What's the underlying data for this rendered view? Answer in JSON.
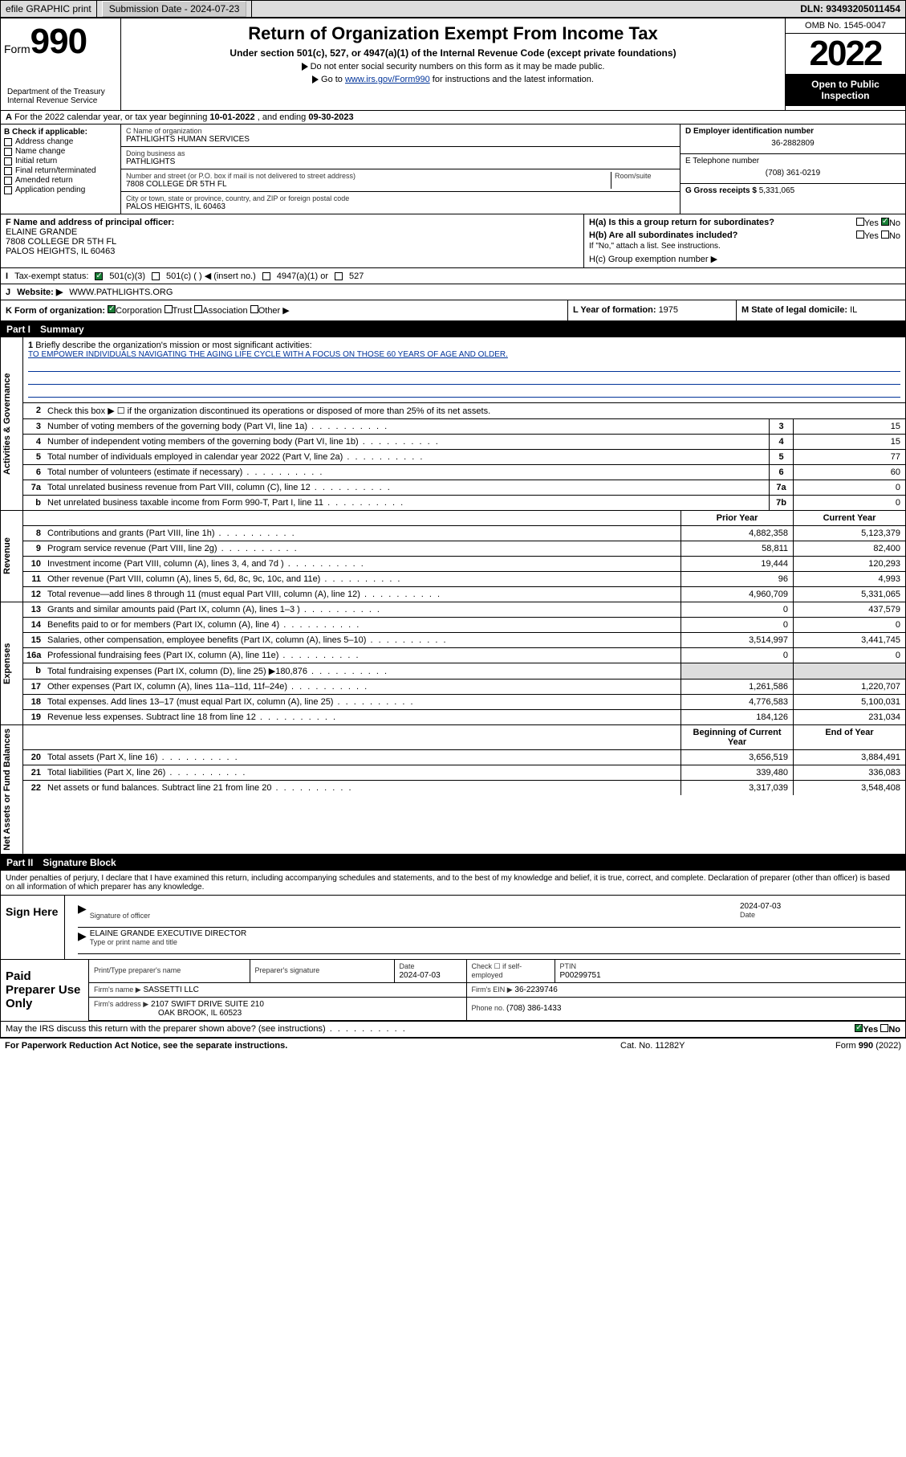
{
  "topbar": {
    "efile": "efile GRAPHIC print",
    "subdate_label": "Submission Date - ",
    "subdate": "2024-07-23",
    "dln_label": "DLN: ",
    "dln": "93493205011454"
  },
  "header": {
    "form_label": "Form",
    "form_num": "990",
    "title": "Return of Organization Exempt From Income Tax",
    "subtitle": "Under section 501(c), 527, or 4947(a)(1) of the Internal Revenue Code (except private foundations)",
    "note1": "Do not enter social security numbers on this form as it may be made public.",
    "note2_pre": "Go to ",
    "note2_link": "www.irs.gov/Form990",
    "note2_post": " for instructions and the latest information.",
    "dept": "Department of the Treasury\nInternal Revenue Service",
    "omb": "OMB No. 1545-0047",
    "year": "2022",
    "inspect": "Open to Public Inspection"
  },
  "periodline": {
    "pre": "For the 2022 calendar year, or tax year beginning ",
    "begin": "10-01-2022",
    "mid": " , and ending ",
    "end": "09-30-2023"
  },
  "B": {
    "title": "B Check if applicable:",
    "opts": [
      "Address change",
      "Name change",
      "Initial return",
      "Final return/terminated",
      "Amended return",
      "Application pending"
    ]
  },
  "C": {
    "name_label": "C Name of organization",
    "name": "PATHLIGHTS HUMAN SERVICES",
    "dba_label": "Doing business as",
    "dba": "PATHLIGHTS",
    "addr_label": "Number and street (or P.O. box if mail is not delivered to street address)",
    "room_label": "Room/suite",
    "addr": "7808 COLLEGE DR 5TH FL",
    "city_label": "City or town, state or province, country, and ZIP or foreign postal code",
    "city": "PALOS HEIGHTS, IL  60463"
  },
  "D": {
    "label": "D Employer identification number",
    "val": "36-2882809",
    "E_label": "E Telephone number",
    "E_val": "(708) 361-0219",
    "G_label": "G Gross receipts $ ",
    "G_val": "5,331,065"
  },
  "F": {
    "label": "F Name and address of principal officer:",
    "name": "ELAINE GRANDE",
    "addr1": "7808 COLLEGE DR 5TH FL",
    "addr2": "PALOS HEIGHTS, IL  60463"
  },
  "H": {
    "a_label": "H(a)  Is this a group return for subordinates?",
    "a_yes": "Yes",
    "a_no": "No",
    "b_label": "H(b)  Are all subordinates included?",
    "b_yes": "Yes",
    "b_no": "No",
    "b_note": "If \"No,\" attach a list. See instructions.",
    "c_label": "H(c)  Group exemption number ▶"
  },
  "I": {
    "label": "Tax-exempt status:",
    "o1": "501(c)(3)",
    "o2": "501(c) (  ) ◀ (insert no.)",
    "o3": "4947(a)(1) or",
    "o4": "527"
  },
  "J": {
    "label": "Website: ▶",
    "val": "WWW.PATHLIGHTS.ORG"
  },
  "K": {
    "label": "K Form of organization:",
    "o1": "Corporation",
    "o2": "Trust",
    "o3": "Association",
    "o4": "Other ▶"
  },
  "L": {
    "label": "L Year of formation: ",
    "val": "1975"
  },
  "M": {
    "label": "M State of legal domicile: ",
    "val": "IL"
  },
  "partI": {
    "num": "Part I",
    "title": "Summary"
  },
  "summary": {
    "q1": "Briefly describe the organization's mission or most significant activities:",
    "mission": "TO EMPOWER INDIVIDUALS NAVIGATING THE AGING LIFE CYCLE WITH A FOCUS ON THOSE 60 YEARS OF AGE AND OLDER.",
    "q2": "Check this box ▶ ☐ if the organization discontinued its operations or disposed of more than 25% of its net assets.",
    "rows_gov": [
      {
        "n": "3",
        "d": "Number of voting members of the governing body (Part VI, line 1a)",
        "box": "3",
        "v": "15"
      },
      {
        "n": "4",
        "d": "Number of independent voting members of the governing body (Part VI, line 1b)",
        "box": "4",
        "v": "15"
      },
      {
        "n": "5",
        "d": "Total number of individuals employed in calendar year 2022 (Part V, line 2a)",
        "box": "5",
        "v": "77"
      },
      {
        "n": "6",
        "d": "Total number of volunteers (estimate if necessary)",
        "box": "6",
        "v": "60"
      },
      {
        "n": "7a",
        "d": "Total unrelated business revenue from Part VIII, column (C), line 12",
        "box": "7a",
        "v": "0"
      },
      {
        "n": "b",
        "d": "Net unrelated business taxable income from Form 990-T, Part I, line 11",
        "box": "7b",
        "v": "0"
      }
    ],
    "hdr_prior": "Prior Year",
    "hdr_curr": "Current Year",
    "rows_rev": [
      {
        "n": "8",
        "d": "Contributions and grants (Part VIII, line 1h)",
        "p": "4,882,358",
        "c": "5,123,379"
      },
      {
        "n": "9",
        "d": "Program service revenue (Part VIII, line 2g)",
        "p": "58,811",
        "c": "82,400"
      },
      {
        "n": "10",
        "d": "Investment income (Part VIII, column (A), lines 3, 4, and 7d )",
        "p": "19,444",
        "c": "120,293"
      },
      {
        "n": "11",
        "d": "Other revenue (Part VIII, column (A), lines 5, 6d, 8c, 9c, 10c, and 11e)",
        "p": "96",
        "c": "4,993"
      },
      {
        "n": "12",
        "d": "Total revenue—add lines 8 through 11 (must equal Part VIII, column (A), line 12)",
        "p": "4,960,709",
        "c": "5,331,065"
      }
    ],
    "rows_exp": [
      {
        "n": "13",
        "d": "Grants and similar amounts paid (Part IX, column (A), lines 1–3 )",
        "p": "0",
        "c": "437,579"
      },
      {
        "n": "14",
        "d": "Benefits paid to or for members (Part IX, column (A), line 4)",
        "p": "0",
        "c": "0"
      },
      {
        "n": "15",
        "d": "Salaries, other compensation, employee benefits (Part IX, column (A), lines 5–10)",
        "p": "3,514,997",
        "c": "3,441,745"
      },
      {
        "n": "16a",
        "d": "Professional fundraising fees (Part IX, column (A), line 11e)",
        "p": "0",
        "c": "0"
      },
      {
        "n": "b",
        "d": "Total fundraising expenses (Part IX, column (D), line 25) ▶180,876",
        "p": "",
        "c": "",
        "shade": true
      },
      {
        "n": "17",
        "d": "Other expenses (Part IX, column (A), lines 11a–11d, 11f–24e)",
        "p": "1,261,586",
        "c": "1,220,707"
      },
      {
        "n": "18",
        "d": "Total expenses. Add lines 13–17 (must equal Part IX, column (A), line 25)",
        "p": "4,776,583",
        "c": "5,100,031"
      },
      {
        "n": "19",
        "d": "Revenue less expenses. Subtract line 18 from line 12",
        "p": "184,126",
        "c": "231,034"
      }
    ],
    "hdr_begin": "Beginning of Current Year",
    "hdr_end": "End of Year",
    "rows_net": [
      {
        "n": "20",
        "d": "Total assets (Part X, line 16)",
        "p": "3,656,519",
        "c": "3,884,491"
      },
      {
        "n": "21",
        "d": "Total liabilities (Part X, line 26)",
        "p": "339,480",
        "c": "336,083"
      },
      {
        "n": "22",
        "d": "Net assets or fund balances. Subtract line 21 from line 20",
        "p": "3,317,039",
        "c": "3,548,408"
      }
    ],
    "vlab_gov": "Activities & Governance",
    "vlab_rev": "Revenue",
    "vlab_exp": "Expenses",
    "vlab_net": "Net Assets or Fund Balances"
  },
  "partII": {
    "num": "Part II",
    "title": "Signature Block"
  },
  "sig": {
    "decl": "Under penalties of perjury, I declare that I have examined this return, including accompanying schedules and statements, and to the best of my knowledge and belief, it is true, correct, and complete. Declaration of preparer (other than officer) is based on all information of which preparer has any knowledge.",
    "sign_here": "Sign Here",
    "sig_officer": "Signature of officer",
    "date": "Date",
    "sig_date": "2024-07-03",
    "officer": "ELAINE GRANDE  EXECUTIVE DIRECTOR",
    "officer_lab": "Type or print name and title",
    "paid": "Paid Preparer Use Only",
    "prep_name_lab": "Print/Type preparer's name",
    "prep_sig_lab": "Preparer's signature",
    "prep_date_lab": "Date",
    "prep_date": "2024-07-03",
    "check_lab": "Check ☐ if self-employed",
    "ptin_lab": "PTIN",
    "ptin": "P00299751",
    "firm_name_lab": "Firm's name ▶",
    "firm_name": "SASSETTI LLC",
    "firm_ein_lab": "Firm's EIN ▶",
    "firm_ein": "36-2239746",
    "firm_addr_lab": "Firm's address ▶",
    "firm_addr1": "2107 SWIFT DRIVE SUITE 210",
    "firm_addr2": "OAK BROOK, IL  60523",
    "phone_lab": "Phone no. ",
    "phone": "(708) 386-1433",
    "discuss": "May the IRS discuss this return with the preparer shown above? (see instructions)",
    "yes": "Yes",
    "no": "No"
  },
  "footer": {
    "l": "For Paperwork Reduction Act Notice, see the separate instructions.",
    "m": "Cat. No. 11282Y",
    "r": "Form 990 (2022)"
  }
}
